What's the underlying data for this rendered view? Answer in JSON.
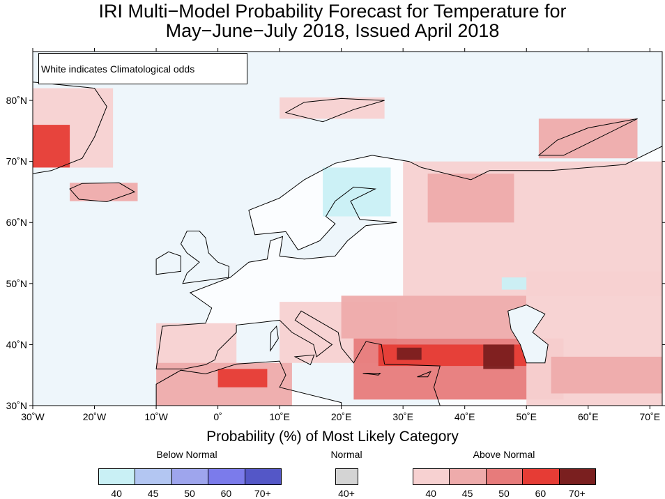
{
  "title": {
    "line1": "IRI Multi−Model Probability Forecast for Temperature for",
    "line2": "May−June−July 2018, Issued April 2018"
  },
  "note": "White indicates Climatological odds",
  "map": {
    "lon_range": [
      -30,
      72
    ],
    "lat_range": [
      30,
      88
    ],
    "lon_ticks": [
      {
        "lon": -30,
        "label": "30˚W"
      },
      {
        "lon": -20,
        "label": "20˚W"
      },
      {
        "lon": -10,
        "label": "10˚W"
      },
      {
        "lon": 0,
        "label": "0˚"
      },
      {
        "lon": 10,
        "label": "10˚E"
      },
      {
        "lon": 20,
        "label": "20˚E"
      },
      {
        "lon": 30,
        "label": "30˚E"
      },
      {
        "lon": 40,
        "label": "40˚E"
      },
      {
        "lon": 50,
        "label": "50˚E"
      },
      {
        "lon": 60,
        "label": "60˚E"
      },
      {
        "lon": 70,
        "label": "70˚E"
      }
    ],
    "lat_ticks": [
      {
        "lat": 30,
        "label": "30˚N"
      },
      {
        "lat": 40,
        "label": "40˚N"
      },
      {
        "lat": 50,
        "label": "50˚N"
      },
      {
        "lat": 60,
        "label": "60˚N"
      },
      {
        "lat": 70,
        "label": "70˚N"
      },
      {
        "lat": 80,
        "label": "80˚N"
      }
    ],
    "background_color": "#eef6fb",
    "land_clim_color": "#fbfdff",
    "regions": [
      {
        "name": "Greenland east coast",
        "lon": [
          -30,
          -17
        ],
        "lat": [
          69,
          82
        ],
        "category": "above",
        "level": 40
      },
      {
        "name": "Greenland southeast",
        "lon": [
          -30,
          -24
        ],
        "lat": [
          69,
          76
        ],
        "category": "above",
        "level": 60
      },
      {
        "name": "Iceland",
        "lon": [
          -24,
          -13
        ],
        "lat": [
          63.5,
          66.5
        ],
        "category": "above",
        "level": 45
      },
      {
        "name": "Svalbard",
        "lon": [
          10,
          27
        ],
        "lat": [
          77,
          80.5
        ],
        "category": "above",
        "level": 40
      },
      {
        "name": "Novaya Zemlya",
        "lon": [
          52,
          68
        ],
        "lat": [
          70.5,
          77
        ],
        "category": "above",
        "level": 45
      },
      {
        "name": "Scandinavia north",
        "lon": [
          17,
          28
        ],
        "lat": [
          61,
          69
        ],
        "category": "below",
        "level": 40
      },
      {
        "name": "Western Russia",
        "lon": [
          30,
          72
        ],
        "lat": [
          48,
          70
        ],
        "category": "above",
        "level": 40
      },
      {
        "name": "Western Russia core",
        "lon": [
          34,
          48
        ],
        "lat": [
          60,
          68
        ],
        "category": "above",
        "level": 45
      },
      {
        "name": "Iberia",
        "lon": [
          -10,
          3
        ],
        "lat": [
          36,
          43.5
        ],
        "category": "above",
        "level": 40
      },
      {
        "name": "Italy Balkans",
        "lon": [
          10,
          29
        ],
        "lat": [
          37,
          47
        ],
        "category": "above",
        "level": 40
      },
      {
        "name": "Black Sea region",
        "lon": [
          20,
          50
        ],
        "lat": [
          41,
          48
        ],
        "category": "above",
        "level": 45
      },
      {
        "name": "North Africa",
        "lon": [
          -10,
          12
        ],
        "lat": [
          30,
          37
        ],
        "category": "above",
        "level": 45
      },
      {
        "name": "Algeria core",
        "lon": [
          0,
          8
        ],
        "lat": [
          33,
          36
        ],
        "category": "above",
        "level": 60
      },
      {
        "name": "Turkey Middle East",
        "lon": [
          22,
          56
        ],
        "lat": [
          31,
          41
        ],
        "category": "above",
        "level": 50
      },
      {
        "name": "Anatolia core",
        "lon": [
          26,
          50
        ],
        "lat": [
          36.5,
          40
        ],
        "category": "above",
        "level": 60
      },
      {
        "name": "Caucasus core",
        "lon": [
          43,
          48
        ],
        "lat": [
          36,
          40
        ],
        "category": "above",
        "level": 70
      },
      {
        "name": "West Anatolia core",
        "lon": [
          29,
          33
        ],
        "lat": [
          37.5,
          39.5
        ],
        "category": "above",
        "level": 70
      },
      {
        "name": "Central Asia",
        "lon": [
          50,
          72
        ],
        "lat": [
          30,
          52
        ],
        "category": "above",
        "level": 40
      },
      {
        "name": "Iran east",
        "lon": [
          54,
          72
        ],
        "lat": [
          32,
          38
        ],
        "category": "above",
        "level": 45
      },
      {
        "name": "Caspian area",
        "lon": [
          46,
          50
        ],
        "lat": [
          49,
          51
        ],
        "category": "below",
        "level": 40
      }
    ]
  },
  "legend": {
    "title": "Probability (%) of Most Likely Category",
    "groups": [
      {
        "label": "Below Normal",
        "swatches": [
          {
            "label": "40",
            "color": "#c9f0f5"
          },
          {
            "label": "45",
            "color": "#b3c6f2"
          },
          {
            "label": "50",
            "color": "#9ea5ed"
          },
          {
            "label": "60",
            "color": "#7b7beb"
          },
          {
            "label": "70+",
            "color": "#5457c7"
          }
        ]
      },
      {
        "label": "Normal",
        "swatches": [
          {
            "label": "40+",
            "color": "#d4d4d4"
          }
        ]
      },
      {
        "label": "Above Normal",
        "swatches": [
          {
            "label": "40",
            "color": "#f7d1d1"
          },
          {
            "label": "45",
            "color": "#eeabab"
          },
          {
            "label": "50",
            "color": "#e77b7b"
          },
          {
            "label": "60",
            "color": "#e63c35"
          },
          {
            "label": "70+",
            "color": "#7a1f1f"
          }
        ]
      }
    ]
  }
}
